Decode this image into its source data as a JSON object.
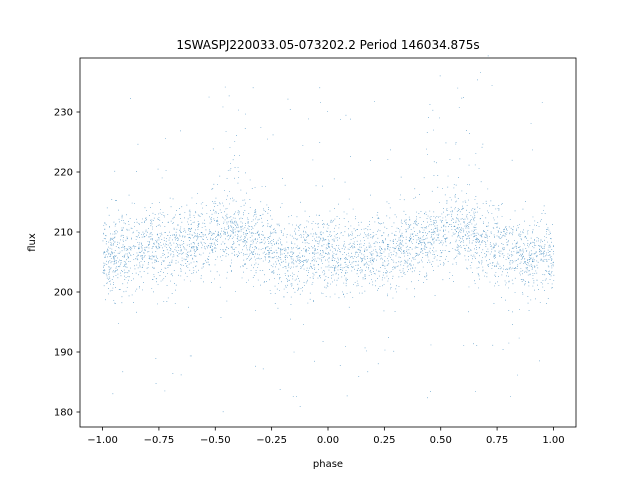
{
  "chart_data": {
    "type": "scatter",
    "title": "1SWASPJ220033.05-073202.2 Period 146034.875s",
    "xlabel": "phase",
    "ylabel": "flux",
    "xlim": [
      -1.1,
      1.1
    ],
    "ylim": [
      177.5,
      239.0
    ],
    "xticks": [
      -1.0,
      -0.75,
      -0.5,
      -0.25,
      0.0,
      0.25,
      0.5,
      0.75,
      1.0
    ],
    "xtick_labels": [
      "−1.00",
      "−0.75",
      "−0.50",
      "−0.25",
      "0.00",
      "0.25",
      "0.50",
      "0.75",
      "1.00"
    ],
    "yticks": [
      180,
      190,
      200,
      210,
      220,
      230
    ],
    "ytick_labels": [
      "180",
      "190",
      "200",
      "210",
      "220",
      "230"
    ],
    "grid": false,
    "legend": "none",
    "point_color": "#1f77b4",
    "series": [
      {
        "profile_phase": [
          -1.0,
          -0.9,
          -0.8,
          -0.7,
          -0.6,
          -0.5,
          -0.45,
          -0.4,
          -0.3,
          -0.2,
          -0.1,
          0.0,
          0.1,
          0.2,
          0.3,
          0.4,
          0.5,
          0.55,
          0.6,
          0.7,
          0.8,
          0.9,
          1.0
        ],
        "profile_median_flux": [
          206,
          206.5,
          207.5,
          208,
          208.5,
          209,
          210,
          209.5,
          208,
          206.5,
          206,
          206,
          206,
          206.5,
          207.5,
          208.5,
          209,
          210,
          209.5,
          208,
          206.5,
          206,
          206
        ],
        "scatter_sigma": 3.2,
        "outlier_flux_range": [
          180,
          236
        ],
        "upper_excursion_phases": [
          -0.45,
          -0.35,
          0.55,
          0.65
        ],
        "upper_excursion_peak_flux": 227
      }
    ]
  }
}
